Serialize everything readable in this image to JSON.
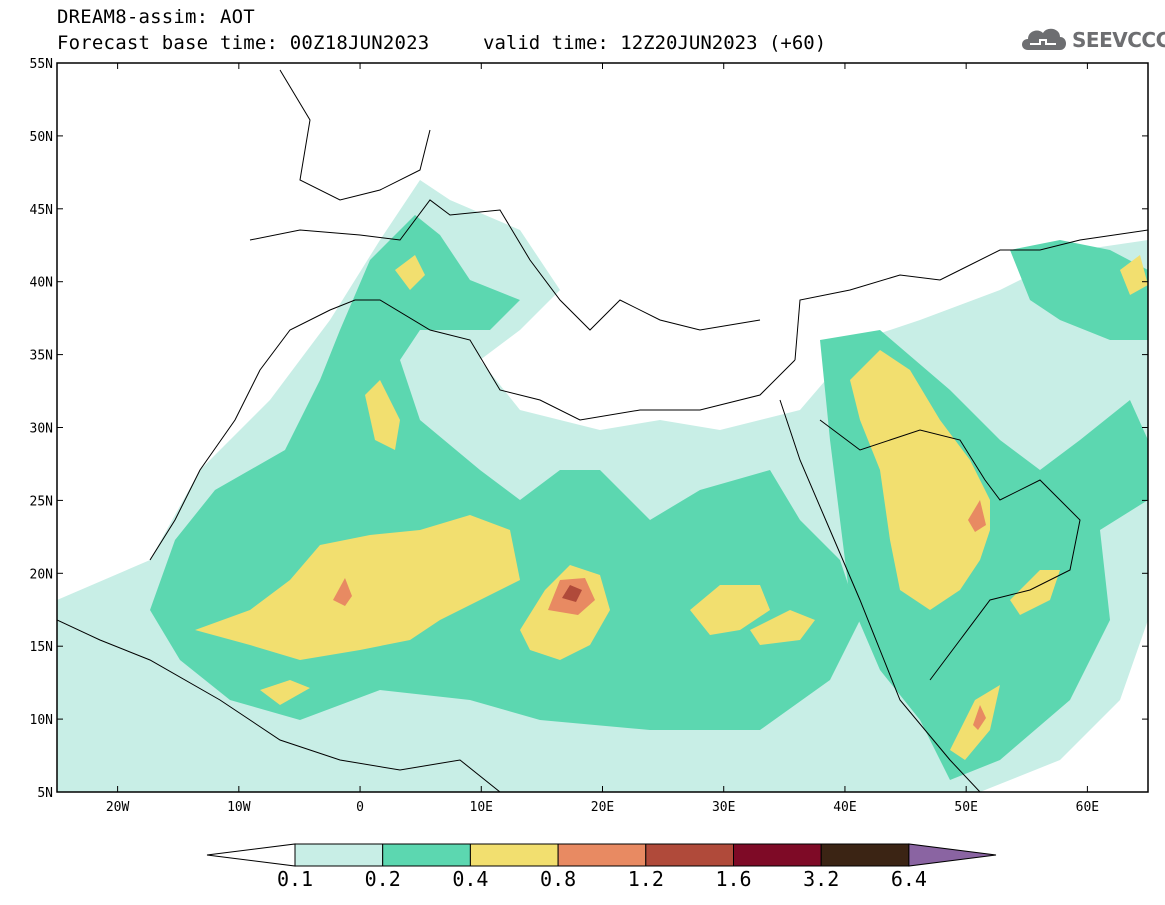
{
  "header": {
    "title_line1": "DREAM8-assim: AOT",
    "title_line2": "Forecast base time: 00Z18JUN2023",
    "valid_time": "valid time: 12Z20JUN2023 (+60)",
    "logo_text": "SEEVCCC"
  },
  "map": {
    "lat_labels": [
      "55N",
      "50N",
      "45N",
      "40N",
      "35N",
      "30N",
      "25N",
      "20N",
      "15N",
      "10N",
      "5N"
    ],
    "lon_labels": [
      "20W",
      "10W",
      "0",
      "10E",
      "20E",
      "30E",
      "40E",
      "50E",
      "60E"
    ],
    "extent": {
      "lon_min": -25,
      "lon_max": 65,
      "lat_min": 5,
      "lat_max": 55
    }
  },
  "colorbar": {
    "labels": [
      "0.1",
      "0.2",
      "0.4",
      "0.8",
      "1.2",
      "1.6",
      "3.2",
      "6.4"
    ],
    "colors": [
      "#ffffff",
      "#c8eee6",
      "#5cd7b0",
      "#f2df6f",
      "#e88a62",
      "#b04a3a",
      "#7e0a26",
      "#3b2414",
      "#8a64a2"
    ]
  }
}
